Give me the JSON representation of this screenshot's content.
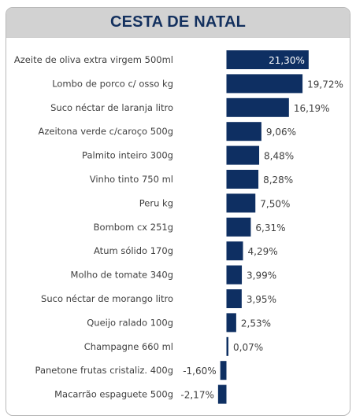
{
  "colors": {
    "bar": "#0e2f62",
    "title": "#13305e",
    "title_bar": "#d2d2d2",
    "label": "#404040"
  },
  "chart_data": {
    "type": "bar",
    "orientation": "horizontal",
    "title": "CESTA DE NATAL",
    "categories": [
      "Azeite de oliva extra virgem 500ml",
      "Lombo de porco c/ osso kg",
      "Suco néctar de laranja litro",
      "Azeitona verde c/caroço 500g",
      "Palmito inteiro 300g",
      "Vinho tinto 750 ml",
      "Peru kg",
      "Bombom cx 251g",
      "Atum sólido 170g",
      "Molho de tomate 340g",
      "Suco néctar de morango litro",
      "Queijo ralado 100g",
      "Champagne 660 ml",
      "Panetone frutas cristaliz. 400g",
      "Macarrão espaguete 500g"
    ],
    "values": [
      21.3,
      19.72,
      16.19,
      9.06,
      8.48,
      8.28,
      7.5,
      6.31,
      4.29,
      3.99,
      3.95,
      2.53,
      0.07,
      -1.6,
      -2.17
    ],
    "value_labels": [
      "21,30%",
      "19,72%",
      "16,19%",
      "9,06%",
      "8,48%",
      "8,28%",
      "7,50%",
      "6,31%",
      "4,29%",
      "3,99%",
      "3,95%",
      "2,53%",
      "0,07%",
      "-1,60%",
      "-2,17%"
    ],
    "xlabel": "",
    "ylabel": "",
    "grid": false,
    "legend": "none"
  }
}
